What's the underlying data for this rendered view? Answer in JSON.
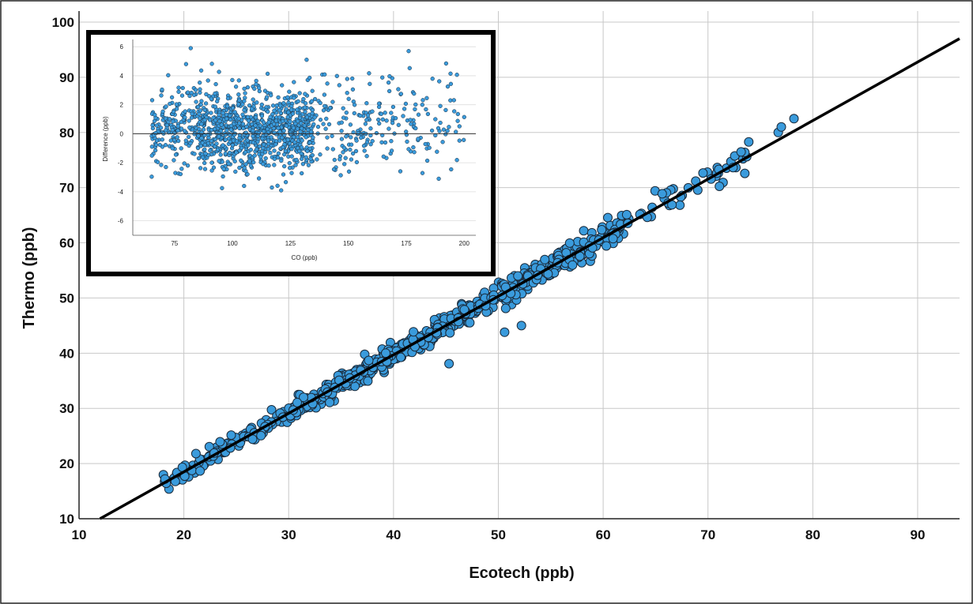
{
  "chart_data": [
    {
      "type": "scatter",
      "xlabel": "Ecotech (ppb)",
      "ylabel": "Thermo (ppb)",
      "xlim": [
        10,
        94
      ],
      "ylim": [
        10,
        102
      ],
      "xticks": [
        10,
        20,
        30,
        40,
        50,
        60,
        70,
        80,
        90
      ],
      "yticks": [
        10,
        20,
        30,
        40,
        50,
        60,
        70,
        80,
        90,
        100
      ],
      "grid": true,
      "marker_color": "#3a9bdc",
      "marker_edge_color": "#1a2a3a",
      "fit_line": {
        "color": "#000000",
        "points": [
          [
            12,
            10
          ],
          [
            94,
            97
          ]
        ]
      },
      "cloud": [
        {
          "x_min": 18,
          "x_max": 30,
          "count": 110,
          "slope": 1.06,
          "intercept": -2.7,
          "spread": 0.8
        },
        {
          "x_min": 30,
          "x_max": 48,
          "count": 420,
          "slope": 1.06,
          "intercept": -2.7,
          "spread": 0.9
        },
        {
          "x_min": 48,
          "x_max": 62,
          "count": 240,
          "slope": 1.06,
          "intercept": -2.7,
          "spread": 1.1
        },
        {
          "x_min": 62,
          "x_max": 74,
          "count": 45,
          "slope": 1.06,
          "intercept": -2.7,
          "spread": 1.2
        }
      ],
      "outliers": [
        [
          45.3,
          38.1
        ],
        [
          50.6,
          43.8
        ],
        [
          52.2,
          45.0
        ],
        [
          76.7,
          80.0
        ],
        [
          77.0,
          81.0
        ],
        [
          78.2,
          82.5
        ],
        [
          18.2,
          17.2
        ]
      ]
    },
    {
      "type": "scatter",
      "xlabel": "CO (ppb)",
      "ylabel": "Difference (ppb)",
      "xlim": [
        57,
        205
      ],
      "ylim": [
        -7,
        6.5
      ],
      "xticks": [
        75,
        100,
        125,
        150,
        175,
        200
      ],
      "yticks": [
        -6,
        -4,
        -2,
        0,
        2,
        4,
        6
      ],
      "grid": true,
      "zero_line": true,
      "marker_color": "#3a9bdc",
      "marker_edge_color": "#1a2a3a",
      "cloud": [
        {
          "x_min": 65,
          "x_max": 85,
          "count": 180,
          "y_center": 0.4,
          "spread": 1.3
        },
        {
          "x_min": 85,
          "x_max": 135,
          "count": 900,
          "y_center": 0.2,
          "spread": 1.4
        },
        {
          "x_min": 135,
          "x_max": 160,
          "count": 110,
          "y_center": 0.5,
          "spread": 1.5
        },
        {
          "x_min": 160,
          "x_max": 200,
          "count": 110,
          "y_center": 0.8,
          "spread": 1.8
        }
      ],
      "outliers": [
        [
          82,
          5.9
        ],
        [
          132,
          5.1
        ],
        [
          176,
          5.7
        ],
        [
          189,
          -3.1
        ],
        [
          105,
          -3.6
        ],
        [
          121,
          -3.9
        ],
        [
          80,
          4.8
        ]
      ]
    }
  ]
}
